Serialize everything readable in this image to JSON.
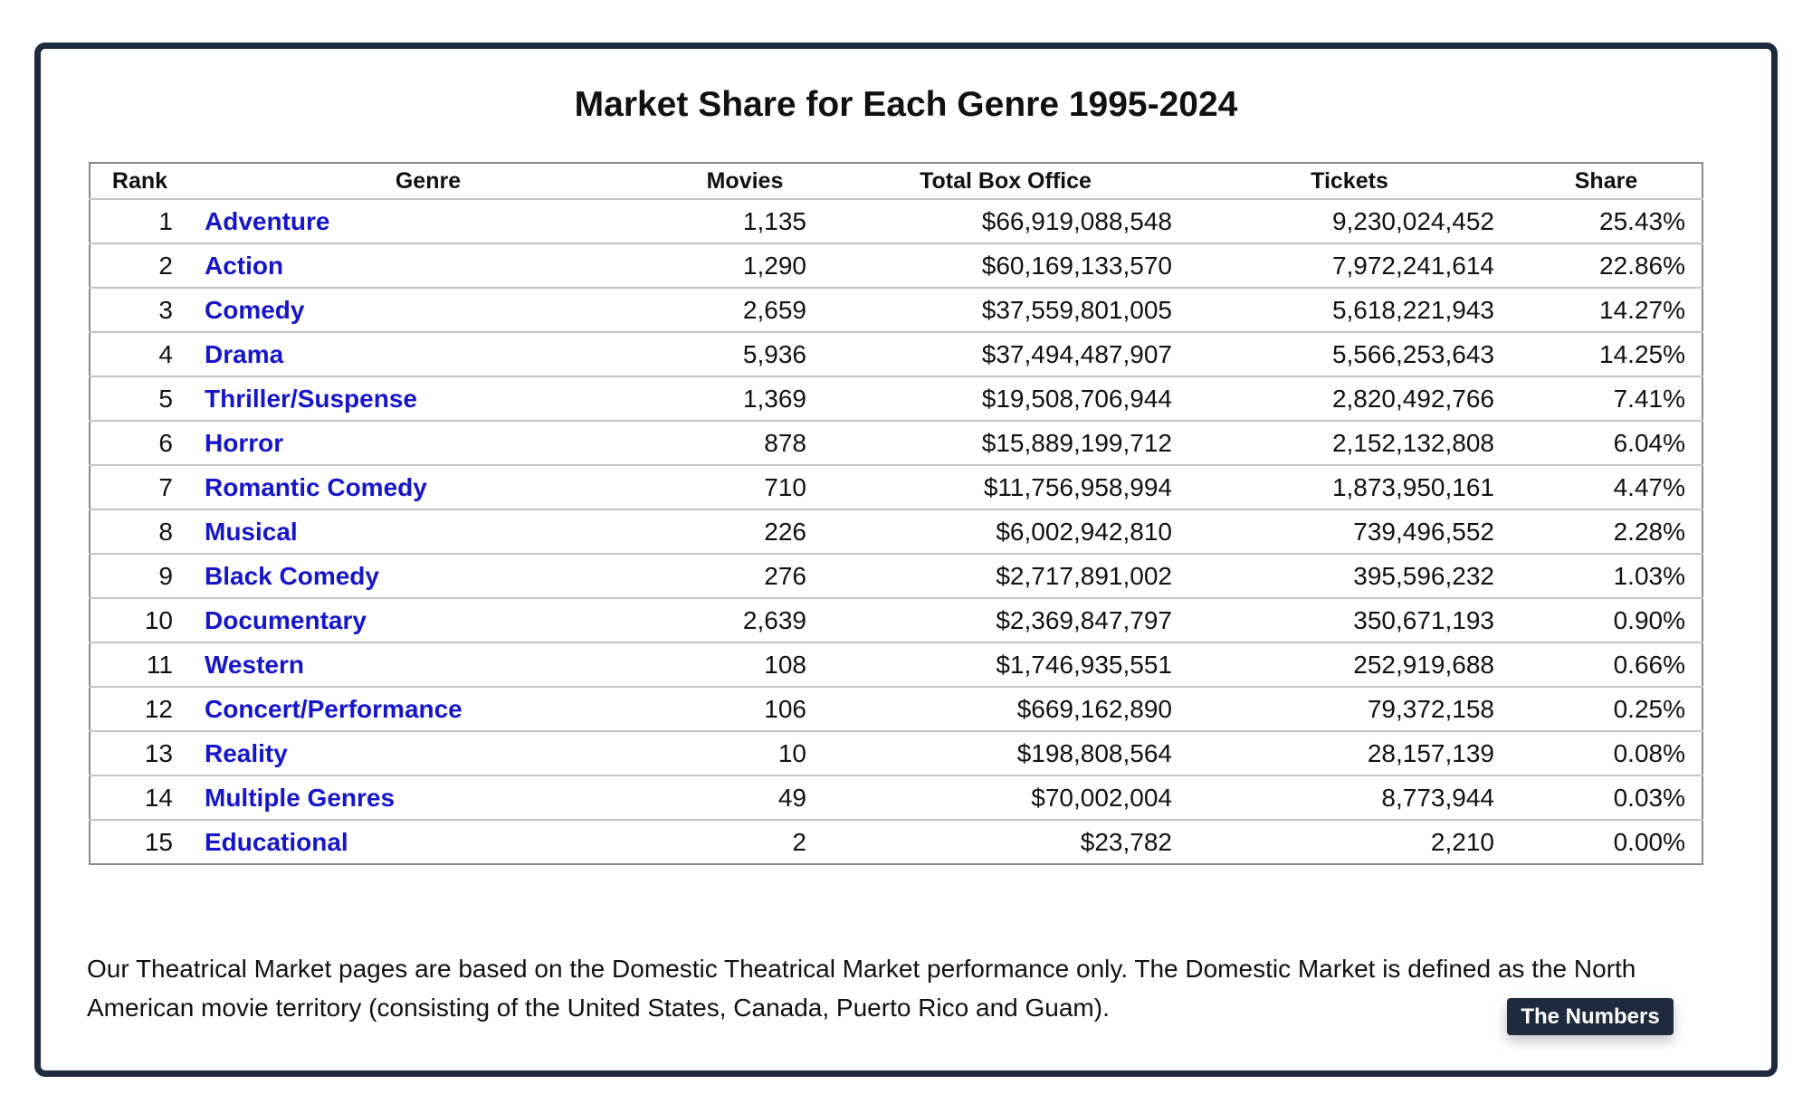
{
  "header": {
    "title": "Market Share for Each Genre 1995-2024"
  },
  "table": {
    "columns": [
      "Rank",
      "Genre",
      "Movies",
      "Total Box Office",
      "Tickets",
      "Share"
    ],
    "rows": [
      [
        "1",
        "Adventure",
        "1,135",
        "$66,919,088,548",
        "9,230,024,452",
        "25.43%"
      ],
      [
        "2",
        "Action",
        "1,290",
        "$60,169,133,570",
        "7,972,241,614",
        "22.86%"
      ],
      [
        "3",
        "Comedy",
        "2,659",
        "$37,559,801,005",
        "5,618,221,943",
        "14.27%"
      ],
      [
        "4",
        "Drama",
        "5,936",
        "$37,494,487,907",
        "5,566,253,643",
        "14.25%"
      ],
      [
        "5",
        "Thriller/Suspense",
        "1,369",
        "$19,508,706,944",
        "2,820,492,766",
        "7.41%"
      ],
      [
        "6",
        "Horror",
        "878",
        "$15,889,199,712",
        "2,152,132,808",
        "6.04%"
      ],
      [
        "7",
        "Romantic Comedy",
        "710",
        "$11,756,958,994",
        "1,873,950,161",
        "4.47%"
      ],
      [
        "8",
        "Musical",
        "226",
        "$6,002,942,810",
        "739,496,552",
        "2.28%"
      ],
      [
        "9",
        "Black Comedy",
        "276",
        "$2,717,891,002",
        "395,596,232",
        "1.03%"
      ],
      [
        "10",
        "Documentary",
        "2,639",
        "$2,369,847,797",
        "350,671,193",
        "0.90%"
      ],
      [
        "11",
        "Western",
        "108",
        "$1,746,935,551",
        "252,919,688",
        "0.66%"
      ],
      [
        "12",
        "Concert/Performance",
        "106",
        "$669,162,890",
        "79,372,158",
        "0.25%"
      ],
      [
        "13",
        "Reality",
        "10",
        "$198,808,564",
        "28,157,139",
        "0.08%"
      ],
      [
        "14",
        "Multiple Genres",
        "49",
        "$70,002,004",
        "8,773,944",
        "0.03%"
      ],
      [
        "15",
        "Educational",
        "2",
        "$23,782",
        "2,210",
        "0.00%"
      ]
    ]
  },
  "footer": {
    "note": "Our Theatrical Market pages are based on the Domestic Theatrical Market performance only. The Domestic Market is defined as the North American movie territory (consisting of the United States, Canada, Puerto Rico and Guam).",
    "badge": "The Numbers"
  }
}
